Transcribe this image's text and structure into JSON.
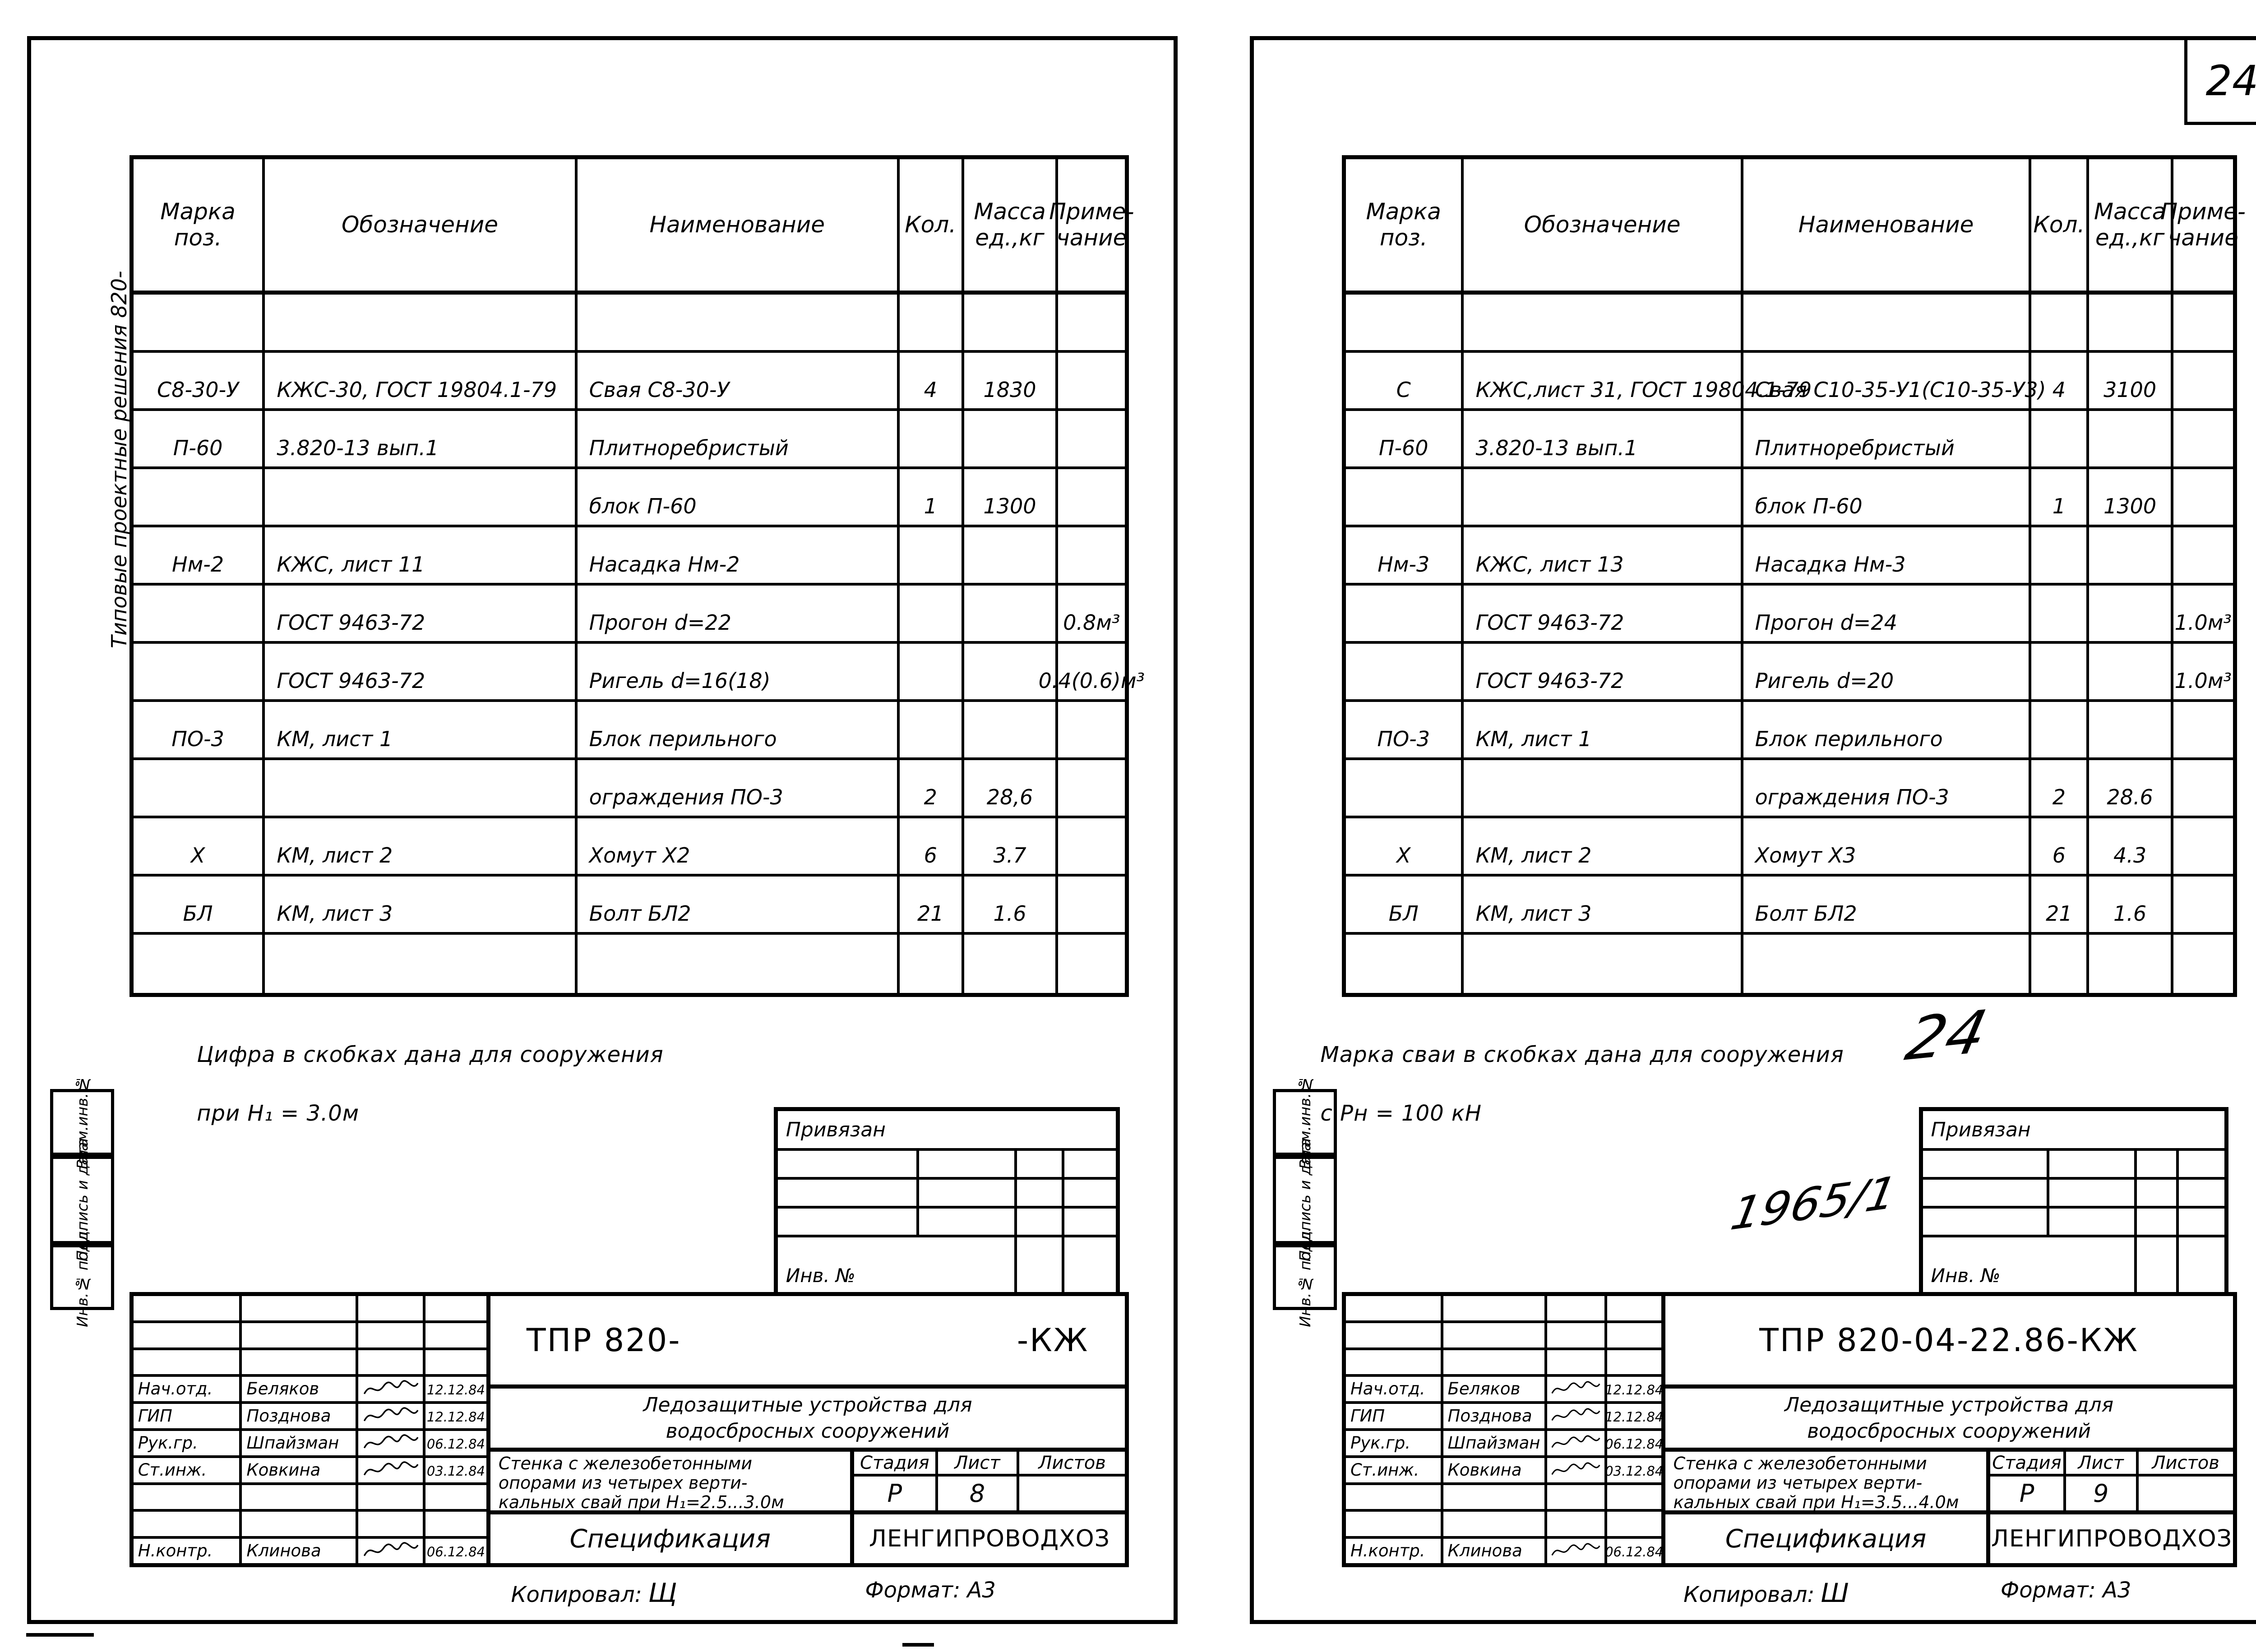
{
  "colors": {
    "ink": "#000000",
    "paper": "#ffffff"
  },
  "sheets": [
    {
      "margin_title": "Типовые проектные решения 820-",
      "margin_boxes": [
        "Взам.инв.№",
        "Подпись и дата",
        "Инв.№ подл."
      ],
      "table": {
        "headers": [
          "Марка\nпоз.",
          "Обозначение",
          "Наименование",
          "Кол.",
          "Масса\nед.,кг",
          "Приме-\nчание"
        ],
        "rows": [
          [
            "",
            "",
            "",
            "",
            "",
            ""
          ],
          [
            "С8-30-У",
            "КЖС-30, ГОСТ 19804.1-79",
            "Свая  С8-30-У",
            "4",
            "1830",
            ""
          ],
          [
            "П-60",
            "3.820-13 вып.1",
            "Плитноребристый",
            "",
            "",
            ""
          ],
          [
            "",
            "",
            "блок  П-60",
            "1",
            "1300",
            ""
          ],
          [
            "Нм-2",
            "КЖС,  лист 11",
            "Насадка  Нм-2",
            "",
            "",
            ""
          ],
          [
            "",
            "ГОСТ 9463-72",
            "Прогон   d=22",
            "",
            "",
            "0.8м³"
          ],
          [
            "",
            "ГОСТ 9463-72",
            "Ригель  d=16(18)",
            "",
            "",
            "0.4(0.6)м³"
          ],
          [
            "ПО-3",
            "КМ, лист 1",
            "Блок  перильного",
            "",
            "",
            ""
          ],
          [
            "",
            "",
            "ограждения  ПО-3",
            "2",
            "28,6",
            ""
          ],
          [
            "Х",
            "КМ, лист 2",
            "Хомут  Х2",
            "6",
            "3.7",
            ""
          ],
          [
            "БЛ",
            "КМ, лист 3",
            "Болт  БЛ2",
            "21",
            "1.6",
            ""
          ],
          [
            "",
            "",
            "",
            "",
            "",
            ""
          ]
        ]
      },
      "note": "Цифра  в  скобках  дана  для  сооружения\nпри  Н₁ = 3.0м",
      "binding_box": {
        "title": "Привязан",
        "inv_label": "Инв. №"
      },
      "stamp": {
        "code_parts": [
          "ТПР 820-",
          "-КЖ"
        ],
        "project_title": "Ледозащитные  устройства  для\nводосбросных  сооружений",
        "object_title": "Стенка с железобетонными\nопорами  из  четырех  верти-\nкальных свай при Н₁=2.5...3.0м",
        "stage_label": "Стадия",
        "list_label": "Лист",
        "lists_label": "Листов",
        "stage": "Р",
        "list_no": "8",
        "lists_total": "",
        "doc_type": "Спецификация",
        "organization": "ЛЕНГИПРОВОДХОЗ",
        "signatures": [
          {
            "role": "",
            "name": "",
            "date": "",
            "sig": false
          },
          {
            "role": "",
            "name": "",
            "date": "",
            "sig": false
          },
          {
            "role": "",
            "name": "",
            "date": "",
            "sig": false
          },
          {
            "role": "Нач.отд.",
            "name": "Беляков",
            "date": "12.12.84",
            "sig": true
          },
          {
            "role": "ГИП",
            "name": "Позднова",
            "date": "12.12.84",
            "sig": true
          },
          {
            "role": "Рук.гр.",
            "name": "Шпайзман",
            "date": "06.12.84",
            "sig": true
          },
          {
            "role": "Ст.инж.",
            "name": "Ковкина",
            "date": "03.12.84",
            "sig": true
          },
          {
            "role": "",
            "name": "",
            "date": "",
            "sig": false
          },
          {
            "role": "",
            "name": "",
            "date": "",
            "sig": false
          },
          {
            "role": "Н.контр.",
            "name": "Клинова",
            "date": "06.12.84",
            "sig": true
          }
        ],
        "copied_label": "Копировал:",
        "copied_by": "Щ",
        "format_note": "Формат: А3"
      }
    },
    {
      "margin_boxes": [
        "Взам.инв.№",
        "Подпись и дата",
        "Инв.№ подл."
      ],
      "corner_page_number": "24",
      "table": {
        "headers": [
          "Марка\nпоз.",
          "Обозначение",
          "Наименование",
          "Кол.",
          "Масса\nед.,кг",
          "Приме-\nчание"
        ],
        "rows": [
          [
            "",
            "",
            "",
            "",
            "",
            ""
          ],
          [
            "С",
            "КЖС,лист 31, ГОСТ 19804.1-79",
            "Свая С10-35-У1(С10-35-У3)",
            "4",
            "3100",
            ""
          ],
          [
            "П-60",
            "3.820-13 вып.1",
            "Плитноребристый",
            "",
            "",
            ""
          ],
          [
            "",
            "",
            "блок  П-60",
            "1",
            "1300",
            ""
          ],
          [
            "Нм-3",
            "КЖС, лист 13",
            "Насадка  Нм-3",
            "",
            "",
            ""
          ],
          [
            "",
            "ГОСТ 9463-72",
            "Прогон   d=24",
            "",
            "",
            "1.0м³"
          ],
          [
            "",
            "ГОСТ 9463-72",
            "Ригель  d=20",
            "",
            "",
            "1.0м³"
          ],
          [
            "ПО-3",
            "КМ, лист 1",
            "Блок  перильного",
            "",
            "",
            ""
          ],
          [
            "",
            "",
            "ограждения  ПО-3",
            "2",
            "28.6",
            ""
          ],
          [
            "Х",
            "КМ, лист 2",
            "Хомут  Х3",
            "6",
            "4.3",
            ""
          ],
          [
            "БЛ",
            "КМ, лист 3",
            "Болт  БЛ2",
            "21",
            "1.6",
            ""
          ],
          [
            "",
            "",
            "",
            "",
            "",
            ""
          ]
        ]
      },
      "note": "Марка  сваи  в  скобках  дана  для  сооружения\nс  Рн = 100 кН",
      "handwritten": {
        "page_mark": "24",
        "inventory_mark": "1965/1"
      },
      "binding_box": {
        "title": "Привязан",
        "inv_label": "Инв. №"
      },
      "stamp": {
        "code_parts": [
          "ТПР 820-04-22.86-КЖ"
        ],
        "project_title": "Ледозащитные  устройства  для\nводосбросных  сооружений",
        "object_title": "Стенка с железобетонными\nопорами  из  четырех  верти-\nкальных свай при Н₁=3.5...4.0м",
        "stage_label": "Стадия",
        "list_label": "Лист",
        "lists_label": "Листов",
        "stage": "Р",
        "list_no": "9",
        "lists_total": "",
        "doc_type": "Спецификация",
        "organization": "ЛЕНГИПРОВОДХОЗ",
        "signatures": [
          {
            "role": "",
            "name": "",
            "date": "",
            "sig": false
          },
          {
            "role": "",
            "name": "",
            "date": "",
            "sig": false
          },
          {
            "role": "",
            "name": "",
            "date": "",
            "sig": false
          },
          {
            "role": "Нач.отд.",
            "name": "Беляков",
            "date": "12.12.84",
            "sig": true
          },
          {
            "role": "ГИП",
            "name": "Позднова",
            "date": "12.12.84",
            "sig": true
          },
          {
            "role": "Рук.гр.",
            "name": "Шпайзман",
            "date": "06.12.84",
            "sig": true
          },
          {
            "role": "Ст.инж.",
            "name": "Ковкина",
            "date": "03.12.84",
            "sig": true
          },
          {
            "role": "",
            "name": "",
            "date": "",
            "sig": false
          },
          {
            "role": "",
            "name": "",
            "date": "",
            "sig": false
          },
          {
            "role": "Н.контр.",
            "name": "Клинова",
            "date": "06.12.84",
            "sig": true
          }
        ],
        "copied_label": "Копировал:",
        "copied_by": "Ш",
        "format_note": "Формат: А3"
      }
    }
  ]
}
